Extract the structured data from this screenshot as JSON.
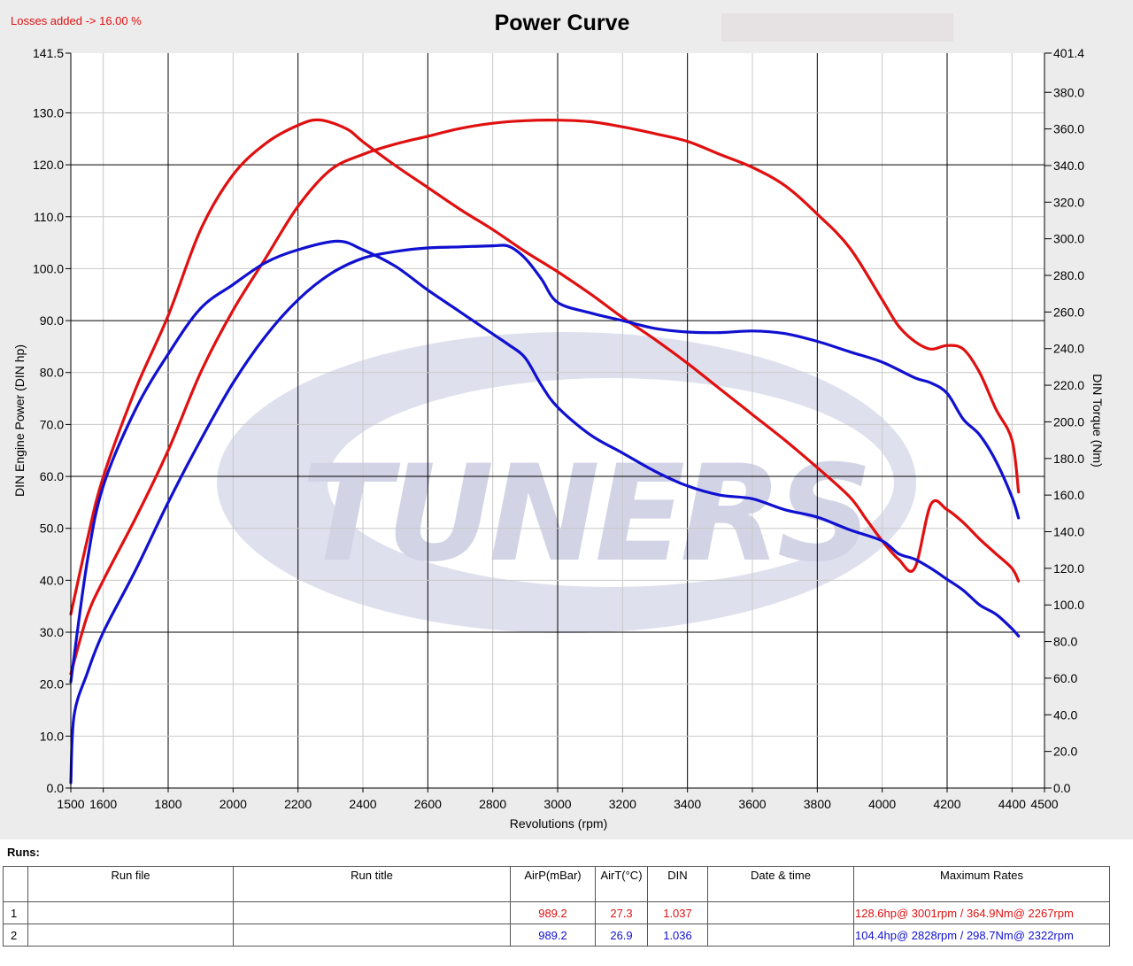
{
  "header": {
    "losses_text": "Losses added -> 16.00 %",
    "title": "Power Curve"
  },
  "chart_data": {
    "type": "line",
    "title": "Power Curve",
    "xlabel": "Revolutions (rpm)",
    "ylabel": "DIN Engine Power (DIN hp)",
    "y2label": "DIN Torque (Nm)",
    "xlim": [
      1500,
      4500
    ],
    "ylim": [
      0,
      141.5
    ],
    "y2lim": [
      0,
      401.4
    ],
    "x_ticks": [
      "1500",
      "1600",
      "1800",
      "2000",
      "2200",
      "2400",
      "2600",
      "2800",
      "3000",
      "3200",
      "3400",
      "3600",
      "3800",
      "4000",
      "4200",
      "4400",
      "4500"
    ],
    "x_tick_values": [
      1500,
      1600,
      1800,
      2000,
      2200,
      2400,
      2600,
      2800,
      3000,
      3200,
      3400,
      3600,
      3800,
      4000,
      4200,
      4400,
      4500
    ],
    "y_ticks": [
      "0.0",
      "10.0",
      "20.0",
      "30.0",
      "40.0",
      "50.0",
      "60.0",
      "70.0",
      "80.0",
      "90.0",
      "100.0",
      "110.0",
      "120.0",
      "130.0",
      "141.5"
    ],
    "y_tick_values": [
      0,
      10,
      20,
      30,
      40,
      50,
      60,
      70,
      80,
      90,
      100,
      110,
      120,
      130,
      141.5
    ],
    "y2_ticks": [
      "0.0",
      "20.0",
      "40.0",
      "60.0",
      "80.0",
      "100.0",
      "120.0",
      "140.0",
      "160.0",
      "180.0",
      "200.0",
      "220.0",
      "240.0",
      "260.0",
      "280.0",
      "300.0",
      "320.0",
      "340.0",
      "360.0",
      "380.0",
      "401.4"
    ],
    "y2_tick_values": [
      0,
      20,
      40,
      60,
      80,
      100,
      120,
      140,
      160,
      180,
      200,
      220,
      240,
      260,
      280,
      300,
      320,
      340,
      360,
      380,
      401.4
    ],
    "grid": true,
    "watermark": "TUNERS",
    "series": [
      {
        "run": 1,
        "quantity": "power",
        "axis": "left",
        "color": "#e01010",
        "x": [
          1500,
          1550,
          1600,
          1700,
          1800,
          1900,
          2000,
          2100,
          2200,
          2300,
          2400,
          2500,
          2600,
          2700,
          2800,
          2900,
          3000,
          3100,
          3200,
          3300,
          3400,
          3500,
          3600,
          3700,
          3800,
          3900,
          4000,
          4050,
          4100,
          4150,
          4200,
          4250,
          4300,
          4350,
          4400,
          4420
        ],
        "y": [
          22,
          33,
          40,
          52,
          65,
          80,
          92,
          102,
          112,
          119,
          122,
          124,
          125.5,
          127,
          128,
          128.5,
          128.6,
          128.3,
          127.3,
          126,
          124.5,
          122,
          119.5,
          116,
          110.5,
          104,
          94,
          89,
          86,
          84.5,
          85.2,
          84.5,
          80,
          73,
          67,
          57
        ]
      },
      {
        "run": 1,
        "quantity": "torque",
        "axis": "right",
        "color": "#e01010",
        "x": [
          1500,
          1550,
          1600,
          1700,
          1800,
          1900,
          2000,
          2100,
          2200,
          2267,
          2350,
          2400,
          2500,
          2600,
          2700,
          2800,
          2900,
          3000,
          3100,
          3200,
          3300,
          3400,
          3500,
          3600,
          3700,
          3800,
          3900,
          3950,
          4000,
          4050,
          4100,
          4150,
          4200,
          4250,
          4300,
          4350,
          4400,
          4420
        ],
        "y": [
          95,
          135,
          170,
          218,
          258,
          305,
          335,
          352,
          362,
          364.9,
          360,
          353,
          340,
          328,
          316,
          305,
          293,
          282,
          270,
          257,
          245,
          232,
          218,
          204,
          190,
          175,
          159,
          147,
          135,
          125,
          120,
          155,
          152,
          145,
          136,
          128,
          120,
          113
        ]
      },
      {
        "run": 2,
        "quantity": "power",
        "axis": "left",
        "color": "#1010d0",
        "x": [
          1500,
          1510,
          1550,
          1600,
          1700,
          1800,
          1900,
          2000,
          2100,
          2200,
          2300,
          2400,
          2500,
          2600,
          2700,
          2800,
          2850,
          2900,
          2950,
          3000,
          3100,
          3200,
          3300,
          3400,
          3500,
          3600,
          3700,
          3800,
          3900,
          4000,
          4100,
          4150,
          4200,
          4250,
          4300,
          4350,
          4400,
          4420
        ],
        "y": [
          1,
          14,
          22,
          30,
          42,
          55,
          67,
          78,
          87,
          94,
          99,
          102,
          103.3,
          104,
          104.2,
          104.4,
          104.3,
          102,
          98,
          93.5,
          91.5,
          90,
          88.5,
          87.8,
          87.7,
          88,
          87.5,
          86,
          84,
          82,
          79,
          78,
          76,
          71,
          68,
          63,
          56,
          52
        ]
      },
      {
        "run": 2,
        "quantity": "torque",
        "axis": "right",
        "color": "#1010d0",
        "x": [
          1500,
          1550,
          1600,
          1700,
          1800,
          1900,
          2000,
          2100,
          2200,
          2322,
          2400,
          2500,
          2600,
          2700,
          2800,
          2850,
          2900,
          2950,
          3000,
          3100,
          3200,
          3300,
          3400,
          3500,
          3600,
          3700,
          3800,
          3900,
          4000,
          4050,
          4100,
          4150,
          4200,
          4250,
          4300,
          4350,
          4400,
          4420
        ],
        "y": [
          58,
          123,
          165,
          207,
          237,
          262,
          275,
          287,
          294,
          298.7,
          294,
          285,
          272,
          260,
          248,
          242,
          235,
          220,
          208,
          193,
          183,
          173,
          165,
          160,
          158,
          152,
          148,
          141,
          135,
          128,
          125,
          120,
          114,
          108,
          100,
          95,
          87,
          83
        ]
      }
    ]
  },
  "runs": {
    "heading": "Runs:",
    "columns": [
      "",
      "Run file",
      "Run title",
      "AirP(mBar)",
      "AirT(°C)",
      "DIN",
      "Date & time",
      "Maximum Rates"
    ],
    "rows": [
      {
        "num": "1",
        "file": "",
        "title": "",
        "airp": "989.2",
        "airt": "27.3",
        "din": "1.037",
        "datetime": "",
        "max": "128.6hp@ 3001rpm / 364.9Nm@ 2267rpm",
        "color": "#e01010"
      },
      {
        "num": "2",
        "file": "",
        "title": "",
        "airp": "989.2",
        "airt": "26.9",
        "din": "1.036",
        "datetime": "",
        "max": "104.4hp@ 2828rpm / 298.7Nm@ 2322rpm",
        "color": "#1010d0"
      }
    ]
  }
}
